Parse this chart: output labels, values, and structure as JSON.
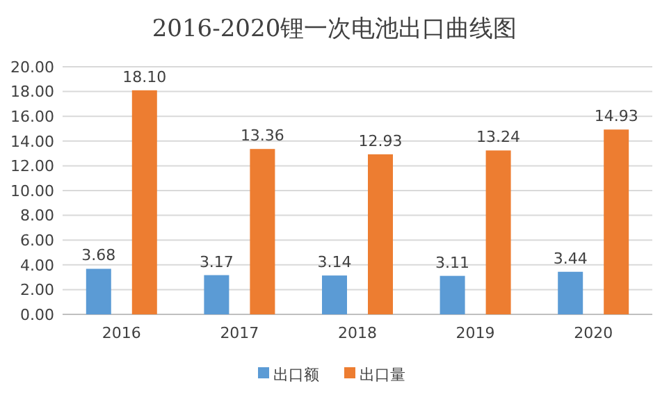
{
  "chart_data": {
    "type": "bar",
    "title": "2016-2020锂一次电池出口曲线图",
    "categories": [
      "2016",
      "2017",
      "2018",
      "2019",
      "2020"
    ],
    "series": [
      {
        "name": "出口额",
        "color": "#5b9bd5",
        "values": [
          3.68,
          3.17,
          3.14,
          3.11,
          3.44
        ],
        "value_labels": [
          "3.68",
          "3.17",
          "3.14",
          "3.11",
          "3.44"
        ]
      },
      {
        "name": "出口量",
        "color": "#ed7d31",
        "values": [
          18.1,
          13.36,
          12.93,
          13.24,
          14.93
        ],
        "value_labels": [
          "18.10",
          "13.36",
          "12.93",
          "13.24",
          "14.93"
        ]
      }
    ],
    "ylim": [
      0,
      20
    ],
    "yticks": [
      {
        "value": 0,
        "label": "0.00"
      },
      {
        "value": 2,
        "label": "2.00"
      },
      {
        "value": 4,
        "label": "4.00"
      },
      {
        "value": 6,
        "label": "6.00"
      },
      {
        "value": 8,
        "label": "8.00"
      },
      {
        "value": 10,
        "label": "10.00"
      },
      {
        "value": 12,
        "label": "12.00"
      },
      {
        "value": 14,
        "label": "14.00"
      },
      {
        "value": 16,
        "label": "16.00"
      },
      {
        "value": 18,
        "label": "18.00"
      },
      {
        "value": 20,
        "label": "20.00"
      }
    ],
    "grid": "y",
    "legend": "bottom"
  }
}
